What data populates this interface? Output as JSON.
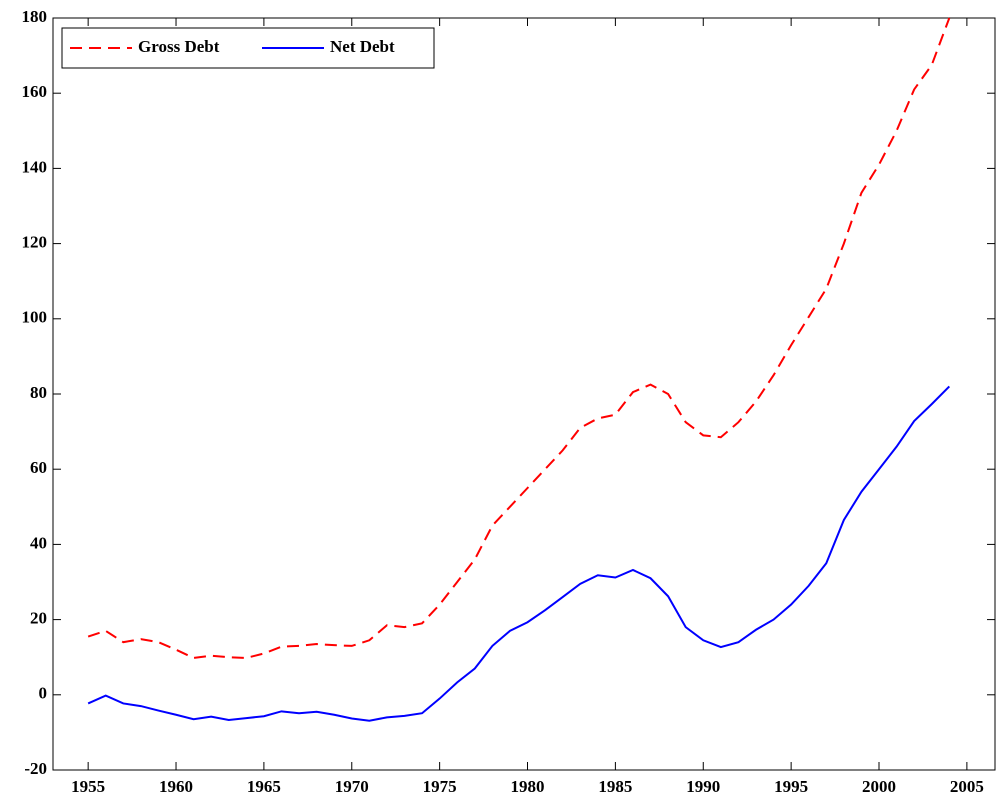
{
  "chart_data": {
    "type": "line",
    "x": [
      1955,
      1956,
      1957,
      1958,
      1959,
      1960,
      1961,
      1962,
      1963,
      1964,
      1965,
      1966,
      1967,
      1968,
      1969,
      1970,
      1971,
      1972,
      1973,
      1974,
      1975,
      1976,
      1977,
      1978,
      1979,
      1980,
      1981,
      1982,
      1983,
      1984,
      1985,
      1986,
      1987,
      1988,
      1989,
      1990,
      1991,
      1992,
      1993,
      1994,
      1995,
      1996,
      1997,
      1998,
      1999,
      2000,
      2001,
      2002,
      2003,
      2004
    ],
    "series": [
      {
        "name": "Gross Debt",
        "color": "#ff0000",
        "dash": true,
        "values": [
          15.5,
          17,
          14,
          14.8,
          14,
          12,
          9.8,
          10.4,
          10,
          9.8,
          11,
          12.8,
          13,
          13.5,
          13.2,
          13,
          14.5,
          18.5,
          18,
          19,
          24,
          30,
          36,
          45,
          50,
          55,
          60,
          65,
          71,
          73.5,
          74.5,
          80.5,
          82.5,
          80,
          72.5,
          69,
          68.5,
          72.5,
          78,
          85,
          93,
          100.5,
          108,
          120,
          133.5,
          141,
          150,
          161,
          167.5,
          180
        ]
      },
      {
        "name": "Net Debt",
        "color": "#0000ff",
        "dash": false,
        "values": [
          -2.3,
          -0.2,
          -2.3,
          -3,
          -4.2,
          -5.3,
          -6.5,
          -5.8,
          -6.7,
          -6.2,
          -5.7,
          -4.4,
          -4.9,
          -4.5,
          -5.3,
          -6.3,
          -6.9,
          -6,
          -5.6,
          -4.9,
          -1,
          3.3,
          7,
          13,
          17,
          19.3,
          22.5,
          26,
          29.5,
          31.8,
          31.2,
          33.2,
          31,
          26.2,
          18,
          14.5,
          12.7,
          14,
          17.3,
          20,
          24,
          29,
          35,
          46.5,
          54,
          60,
          66,
          72.8,
          77.3,
          82
        ]
      }
    ],
    "xlim": [
      1953,
      2006.6
    ],
    "xticks": [
      1955,
      1960,
      1965,
      1970,
      1975,
      1980,
      1985,
      1990,
      1995,
      2000,
      2005
    ],
    "ylim": [
      -20,
      180
    ],
    "yticks": [
      -20,
      0,
      20,
      40,
      60,
      80,
      100,
      120,
      140,
      160,
      180
    ],
    "legend": "upper-left"
  }
}
